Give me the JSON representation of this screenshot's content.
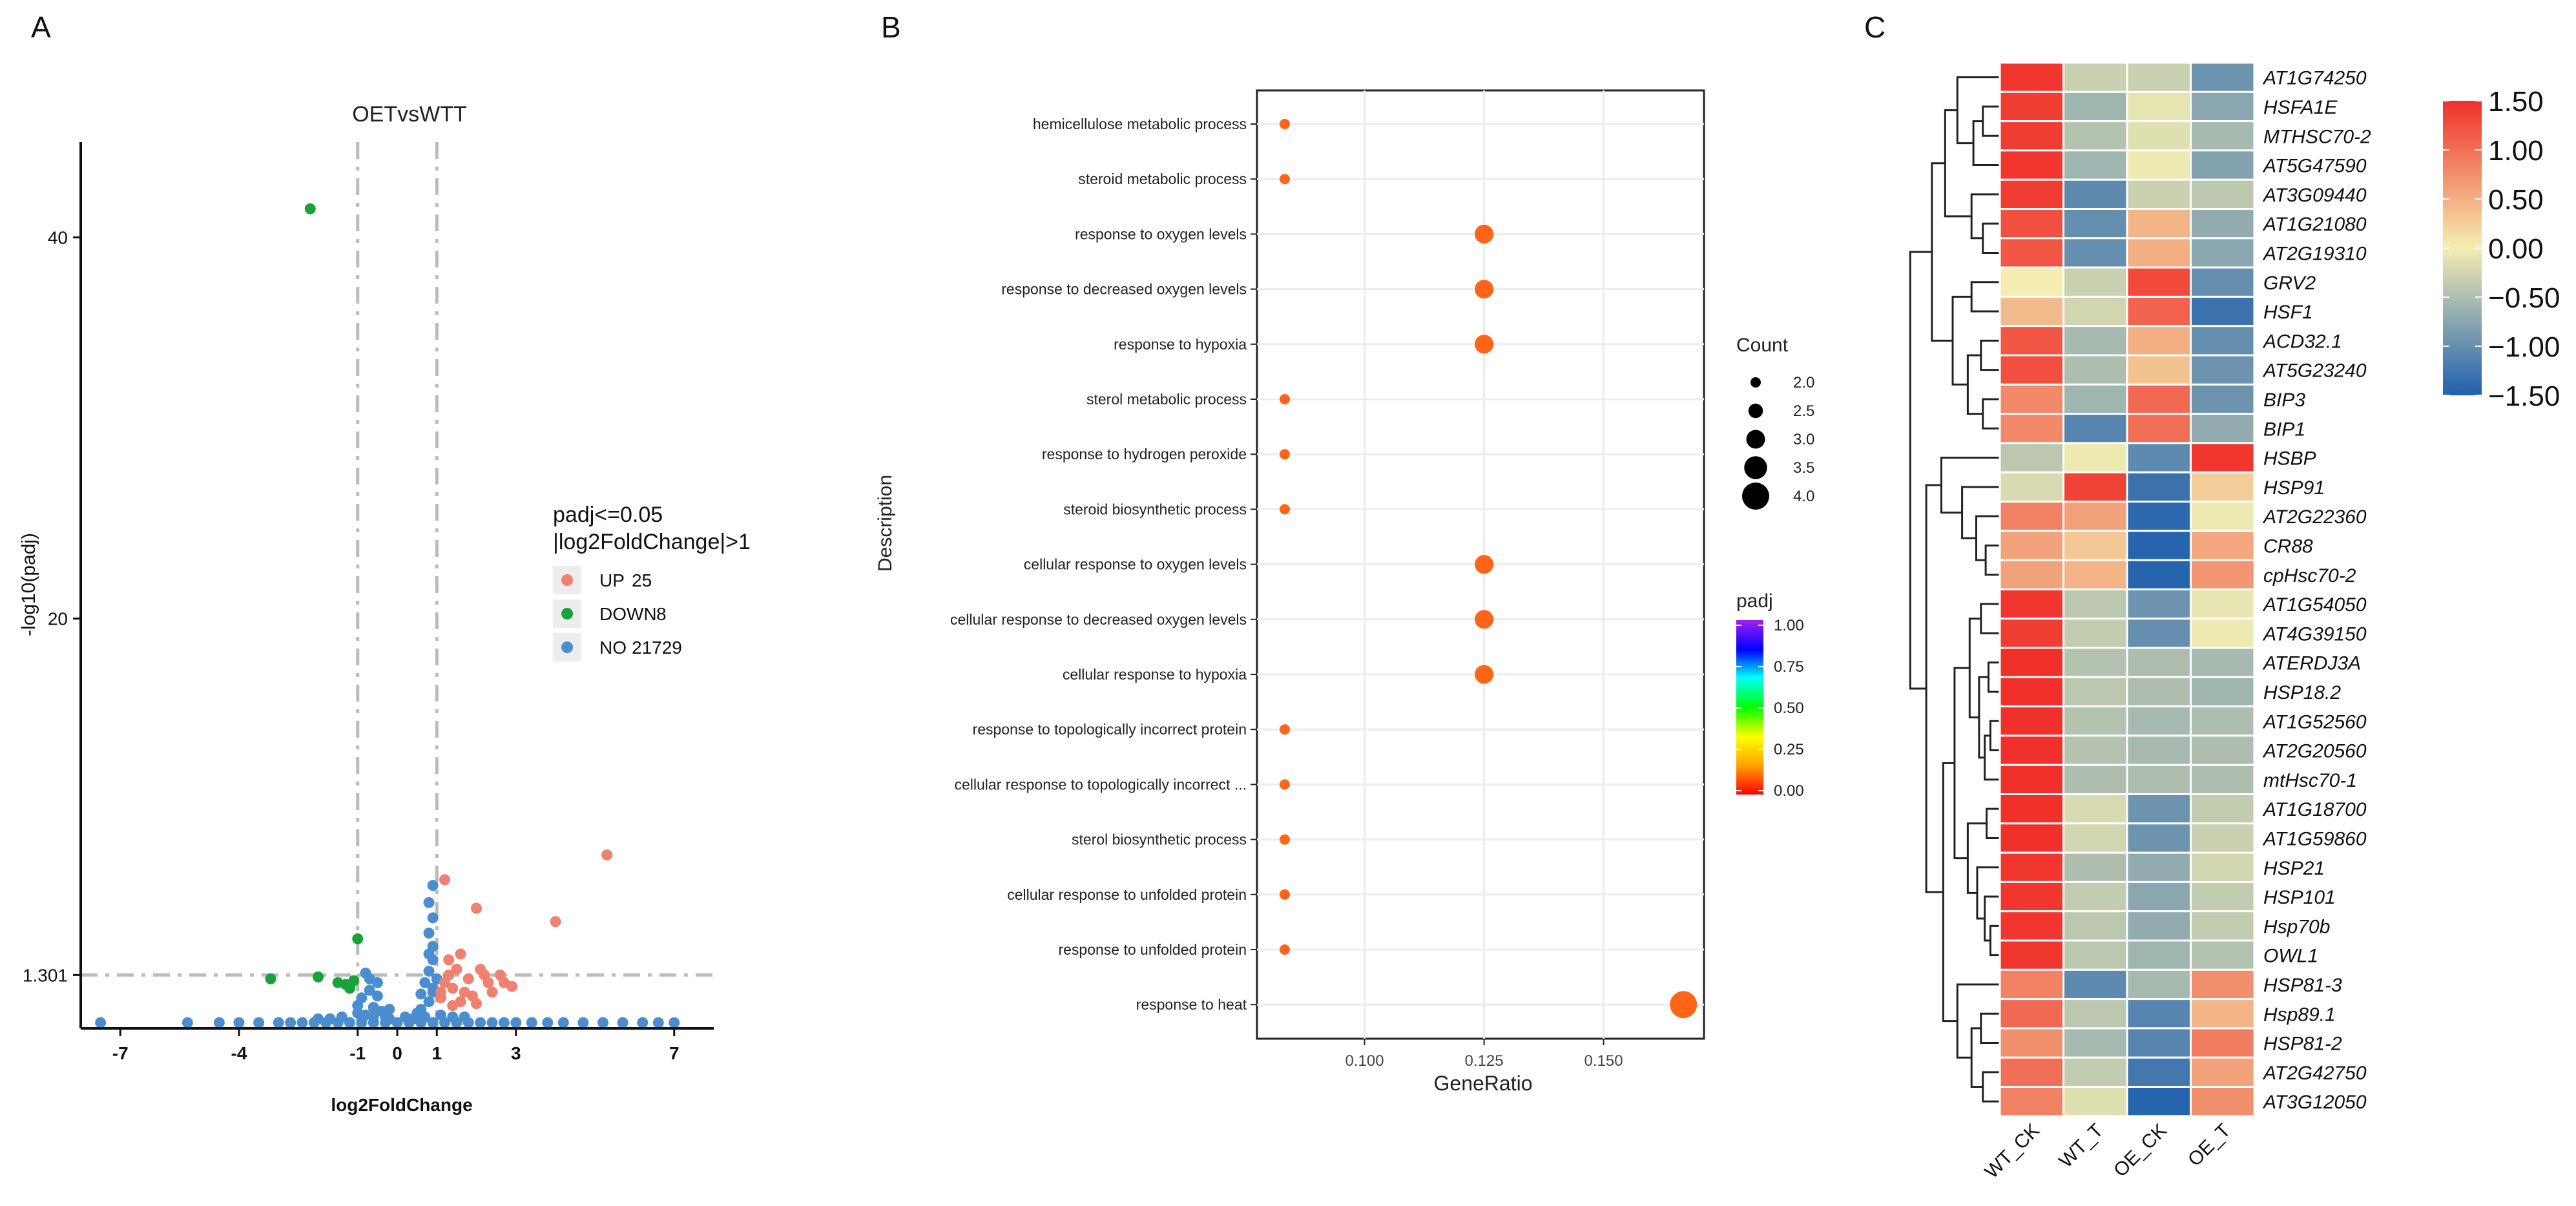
{
  "panels": {
    "a": "A",
    "b": "B",
    "c": "C"
  },
  "chart_data": [
    {
      "type": "scatter",
      "subtype": "volcano",
      "title": "OETvsWTT",
      "xlabel": "log2FoldChange",
      "ylabel": "-log10(padj)",
      "xlim": [
        -8,
        8
      ],
      "ylim": [
        -1.5,
        45
      ],
      "x_ticks": [
        -7,
        -4,
        -1,
        0,
        1,
        3,
        7
      ],
      "y_ticks": [
        1.301,
        20,
        40
      ],
      "y_tick_labels": [
        "1.301",
        "20",
        "40"
      ],
      "thresholds": {
        "x": [
          -1,
          1
        ],
        "y": 1.301
      },
      "legend_title": [
        "padj<=0.05",
        "|log2FoldChange|>1"
      ],
      "series": [
        {
          "name": "UP",
          "count": "25",
          "color": "#f08070",
          "points": [
            [
              5.3,
              7.6
            ],
            [
              4.0,
              4.1
            ],
            [
              2.0,
              4.8
            ],
            [
              1.2,
              6.3
            ],
            [
              1.6,
              2.4
            ],
            [
              1.3,
              2.1
            ],
            [
              1.8,
              1.1
            ],
            [
              2.1,
              1.6
            ],
            [
              2.6,
              1.3
            ],
            [
              2.9,
              0.7
            ],
            [
              1.4,
              0.6
            ],
            [
              2.3,
              0.9
            ],
            [
              1.7,
              0.4
            ],
            [
              1.2,
              0.9
            ],
            [
              1.9,
              0.2
            ],
            [
              2.4,
              0.4
            ],
            [
              1.5,
              1.6
            ],
            [
              1.1,
              0.4
            ],
            [
              1.3,
              1.3
            ],
            [
              2.7,
              0.9
            ],
            [
              1.6,
              -0.1
            ],
            [
              1.1,
              0.1
            ],
            [
              2.0,
              -0.2
            ],
            [
              1.4,
              -0.3
            ],
            [
              2.2,
              1.3
            ]
          ]
        },
        {
          "name": "DOWN",
          "count": "8",
          "color": "#1aa23a",
          "points": [
            [
              -2.2,
              41.5
            ],
            [
              -1.0,
              3.2
            ],
            [
              -3.2,
              1.1
            ],
            [
              -2.0,
              1.2
            ],
            [
              -1.3,
              0.8
            ],
            [
              -1.1,
              1.0
            ],
            [
              -1.2,
              0.6
            ],
            [
              -1.5,
              0.9
            ]
          ]
        },
        {
          "name": "NO",
          "count": "21729",
          "color": "#4a8ed0",
          "points": [
            [
              -7.5,
              -1.2
            ],
            [
              -5.3,
              -1.2
            ],
            [
              -4.5,
              -1.2
            ],
            [
              -4.0,
              -1.2
            ],
            [
              -3.5,
              -1.2
            ],
            [
              -3.0,
              -1.2
            ],
            [
              -2.7,
              -1.2
            ],
            [
              -2.4,
              -1.2
            ],
            [
              -2.1,
              -1.2
            ],
            [
              -1.8,
              -1.2
            ],
            [
              -1.5,
              -1.2
            ],
            [
              -1.2,
              -1.2
            ],
            [
              -0.9,
              -1.2
            ],
            [
              -0.6,
              -1.2
            ],
            [
              -0.3,
              -1.2
            ],
            [
              0.0,
              -1.2
            ],
            [
              0.3,
              -1.2
            ],
            [
              0.6,
              -1.2
            ],
            [
              0.9,
              -1.2
            ],
            [
              1.2,
              -1.2
            ],
            [
              1.5,
              -1.2
            ],
            [
              1.8,
              -1.2
            ],
            [
              2.1,
              -1.2
            ],
            [
              2.4,
              -1.2
            ],
            [
              2.7,
              -1.2
            ],
            [
              3.0,
              -1.2
            ],
            [
              3.4,
              -1.2
            ],
            [
              3.8,
              -1.2
            ],
            [
              4.2,
              -1.2
            ],
            [
              4.7,
              -1.2
            ],
            [
              5.2,
              -1.2
            ],
            [
              5.7,
              -1.2
            ],
            [
              6.2,
              -1.2
            ],
            [
              6.6,
              -1.2
            ],
            [
              7.0,
              -1.2
            ],
            [
              -0.8,
              -0.8
            ],
            [
              -0.6,
              -0.4
            ],
            [
              -0.9,
              0.1
            ],
            [
              -0.7,
              0.5
            ],
            [
              -0.5,
              0.9
            ],
            [
              -0.8,
              1.4
            ],
            [
              -0.6,
              -0.9
            ],
            [
              -0.4,
              -0.6
            ],
            [
              -1.0,
              -0.7
            ],
            [
              -0.3,
              -0.9
            ],
            [
              0.6,
              -0.5
            ],
            [
              0.8,
              -0.1
            ],
            [
              0.9,
              0.4
            ],
            [
              0.7,
              0.9
            ],
            [
              0.8,
              1.5
            ],
            [
              0.9,
              2.1
            ],
            [
              0.9,
              2.8
            ],
            [
              0.8,
              3.5
            ],
            [
              0.9,
              4.3
            ],
            [
              0.8,
              5.1
            ],
            [
              0.9,
              6.0
            ],
            [
              0.7,
              -0.9
            ],
            [
              0.5,
              -0.7
            ],
            [
              1.0,
              1.1
            ],
            [
              0.6,
              0.3
            ],
            [
              0.4,
              -1.0
            ],
            [
              0.2,
              -0.9
            ],
            [
              -0.2,
              -1.0
            ],
            [
              1.1,
              -0.8
            ],
            [
              1.4,
              -0.9
            ],
            [
              1.7,
              -0.9
            ],
            [
              -1.4,
              -0.9
            ],
            [
              -1.7,
              -1.0
            ],
            [
              -2.0,
              -1.0
            ],
            [
              -0.5,
              0.2
            ],
            [
              0.9,
              0.6
            ],
            [
              0.8,
              2.4
            ],
            [
              -0.7,
              1.1
            ],
            [
              -1.0,
              -0.3
            ],
            [
              -0.2,
              -0.5
            ]
          ]
        }
      ]
    },
    {
      "type": "scatter",
      "subtype": "dotplot",
      "xlabel": "GeneRatio",
      "ylabel": "Description",
      "xlim": [
        0.0775,
        0.171
      ],
      "x_ticks": [
        0.1,
        0.125,
        0.15
      ],
      "x_tick_labels": [
        "0.100",
        "0.125",
        "0.150"
      ],
      "categories": [
        "hemicellulose metabolic process",
        "steroid metabolic process",
        "response to oxygen levels",
        "response to decreased oxygen levels",
        "response to hypoxia",
        "sterol metabolic process",
        "response to hydrogen peroxide",
        "steroid biosynthetic process",
        "cellular response to oxygen levels",
        "cellular response to decreased oxygen levels",
        "cellular response to hypoxia",
        "response to topologically incorrect protein",
        "cellular response to topologically incorrect ...",
        "sterol biosynthetic process",
        "cellular response to unfolded protein",
        "response to unfolded protein",
        "response to heat"
      ],
      "gene_ratio": [
        0.0833,
        0.0833,
        0.125,
        0.125,
        0.125,
        0.0833,
        0.0833,
        0.0833,
        0.125,
        0.125,
        0.125,
        0.0833,
        0.0833,
        0.0833,
        0.0833,
        0.0833,
        0.1667
      ],
      "count": [
        2,
        2,
        3,
        3,
        3,
        2,
        2,
        2,
        3,
        3,
        3,
        2,
        2,
        2,
        2,
        2,
        4
      ],
      "padj": [
        0.13,
        0.13,
        0.12,
        0.12,
        0.12,
        0.13,
        0.13,
        0.13,
        0.12,
        0.12,
        0.12,
        0.13,
        0.13,
        0.13,
        0.13,
        0.13,
        0.12
      ],
      "dot_color": "#ff6417",
      "size_legend": {
        "title": "Count",
        "values": [
          2.0,
          2.5,
          3.0,
          3.5,
          4.0
        ],
        "labels": [
          "2.0",
          "2.5",
          "3.0",
          "3.5",
          "4.0"
        ]
      },
      "color_legend": {
        "title": "padj",
        "range": [
          0,
          1
        ],
        "ticks": [
          "0.00",
          "0.25",
          "0.50",
          "0.75",
          "1.00"
        ],
        "colors": [
          "#ff0000",
          "#ffa500",
          "#ffff00",
          "#00ff00",
          "#00ffff",
          "#0000ff",
          "#a020f0"
        ]
      }
    },
    {
      "type": "heatmap",
      "columns": [
        "WT_CK",
        "WT_T",
        "OE_CK",
        "OE_T"
      ],
      "rows": [
        "AT1G74250",
        "HSFA1E",
        "MTHSC70-2",
        "AT5G47590",
        "AT3G09440",
        "AT1G21080",
        "AT2G19310",
        "GRV2",
        "HSF1",
        "ACD32.1",
        "AT5G23240",
        "BIP3",
        "BIP1",
        "HSBP",
        "HSP91",
        "AT2G22360",
        "CR88",
        "cpHsc70-2",
        "AT1G54050",
        "AT4G39150",
        "ATERDJ3A",
        "HSP18.2",
        "AT1G52560",
        "AT2G20560",
        "mtHsc70-1",
        "AT1G18700",
        "AT1G59860",
        "HSP21",
        "HSP101",
        "Hsp70b",
        "OWL1",
        "HSP81-3",
        "Hsp89.1",
        "HSP81-2",
        "AT2G42750",
        "AT3G12050"
      ],
      "values": [
        [
          1.45,
          -0.3,
          -0.3,
          -0.95
        ],
        [
          1.4,
          -0.6,
          -0.1,
          -0.75
        ],
        [
          1.4,
          -0.45,
          -0.15,
          -0.55
        ],
        [
          1.45,
          -0.6,
          -0.05,
          -0.8
        ],
        [
          1.4,
          -1.05,
          -0.3,
          -0.4
        ],
        [
          1.25,
          -1.0,
          0.45,
          -0.7
        ],
        [
          1.2,
          -1.0,
          0.5,
          -0.75
        ],
        [
          0.0,
          -0.3,
          1.3,
          -1.0
        ],
        [
          0.4,
          -0.25,
          1.1,
          -1.3
        ],
        [
          1.2,
          -0.55,
          0.5,
          -1.0
        ],
        [
          1.25,
          -0.5,
          0.35,
          -0.95
        ],
        [
          0.8,
          -0.6,
          1.05,
          -0.95
        ],
        [
          0.8,
          -1.1,
          1.0,
          -0.7
        ],
        [
          -0.4,
          -0.05,
          -1.05,
          1.45
        ],
        [
          -0.2,
          1.35,
          -1.3,
          0.25
        ],
        [
          0.85,
          0.6,
          -1.4,
          -0.05
        ],
        [
          0.6,
          0.3,
          -1.45,
          0.55
        ],
        [
          0.6,
          0.45,
          -1.45,
          0.7
        ],
        [
          1.45,
          -0.4,
          -0.95,
          -0.1
        ],
        [
          1.4,
          -0.35,
          -1.0,
          -0.05
        ],
        [
          1.5,
          -0.45,
          -0.5,
          -0.55
        ],
        [
          1.5,
          -0.4,
          -0.5,
          -0.6
        ],
        [
          1.5,
          -0.45,
          -0.55,
          -0.5
        ],
        [
          1.5,
          -0.45,
          -0.55,
          -0.5
        ],
        [
          1.5,
          -0.5,
          -0.5,
          -0.5
        ],
        [
          1.5,
          -0.2,
          -0.95,
          -0.35
        ],
        [
          1.5,
          -0.25,
          -0.95,
          -0.3
        ],
        [
          1.45,
          -0.5,
          -0.7,
          -0.25
        ],
        [
          1.45,
          -0.35,
          -0.75,
          -0.35
        ],
        [
          1.45,
          -0.4,
          -0.7,
          -0.35
        ],
        [
          1.45,
          -0.4,
          -0.6,
          -0.45
        ],
        [
          0.85,
          -1.05,
          -0.55,
          0.75
        ],
        [
          1.05,
          -0.4,
          -1.1,
          0.45
        ],
        [
          0.75,
          -0.55,
          -1.1,
          0.9
        ],
        [
          1.0,
          -0.35,
          -1.25,
          0.6
        ],
        [
          0.85,
          -0.15,
          -1.45,
          0.75
        ]
      ],
      "color_scale": {
        "min": -1.5,
        "mid": 0,
        "max": 1.5,
        "low": "#1f5fae",
        "midcolor": "#f4eeb0",
        "high": "#f0302a"
      },
      "colorbar_ticks": [
        1.5,
        1.0,
        0.5,
        0.0,
        -0.5,
        -1.0,
        -1.5
      ],
      "colorbar_labels": [
        "1.50",
        "1.00",
        "0.50",
        "0.00",
        "−0.50",
        "−1.00",
        "−1.50"
      ]
    }
  ]
}
